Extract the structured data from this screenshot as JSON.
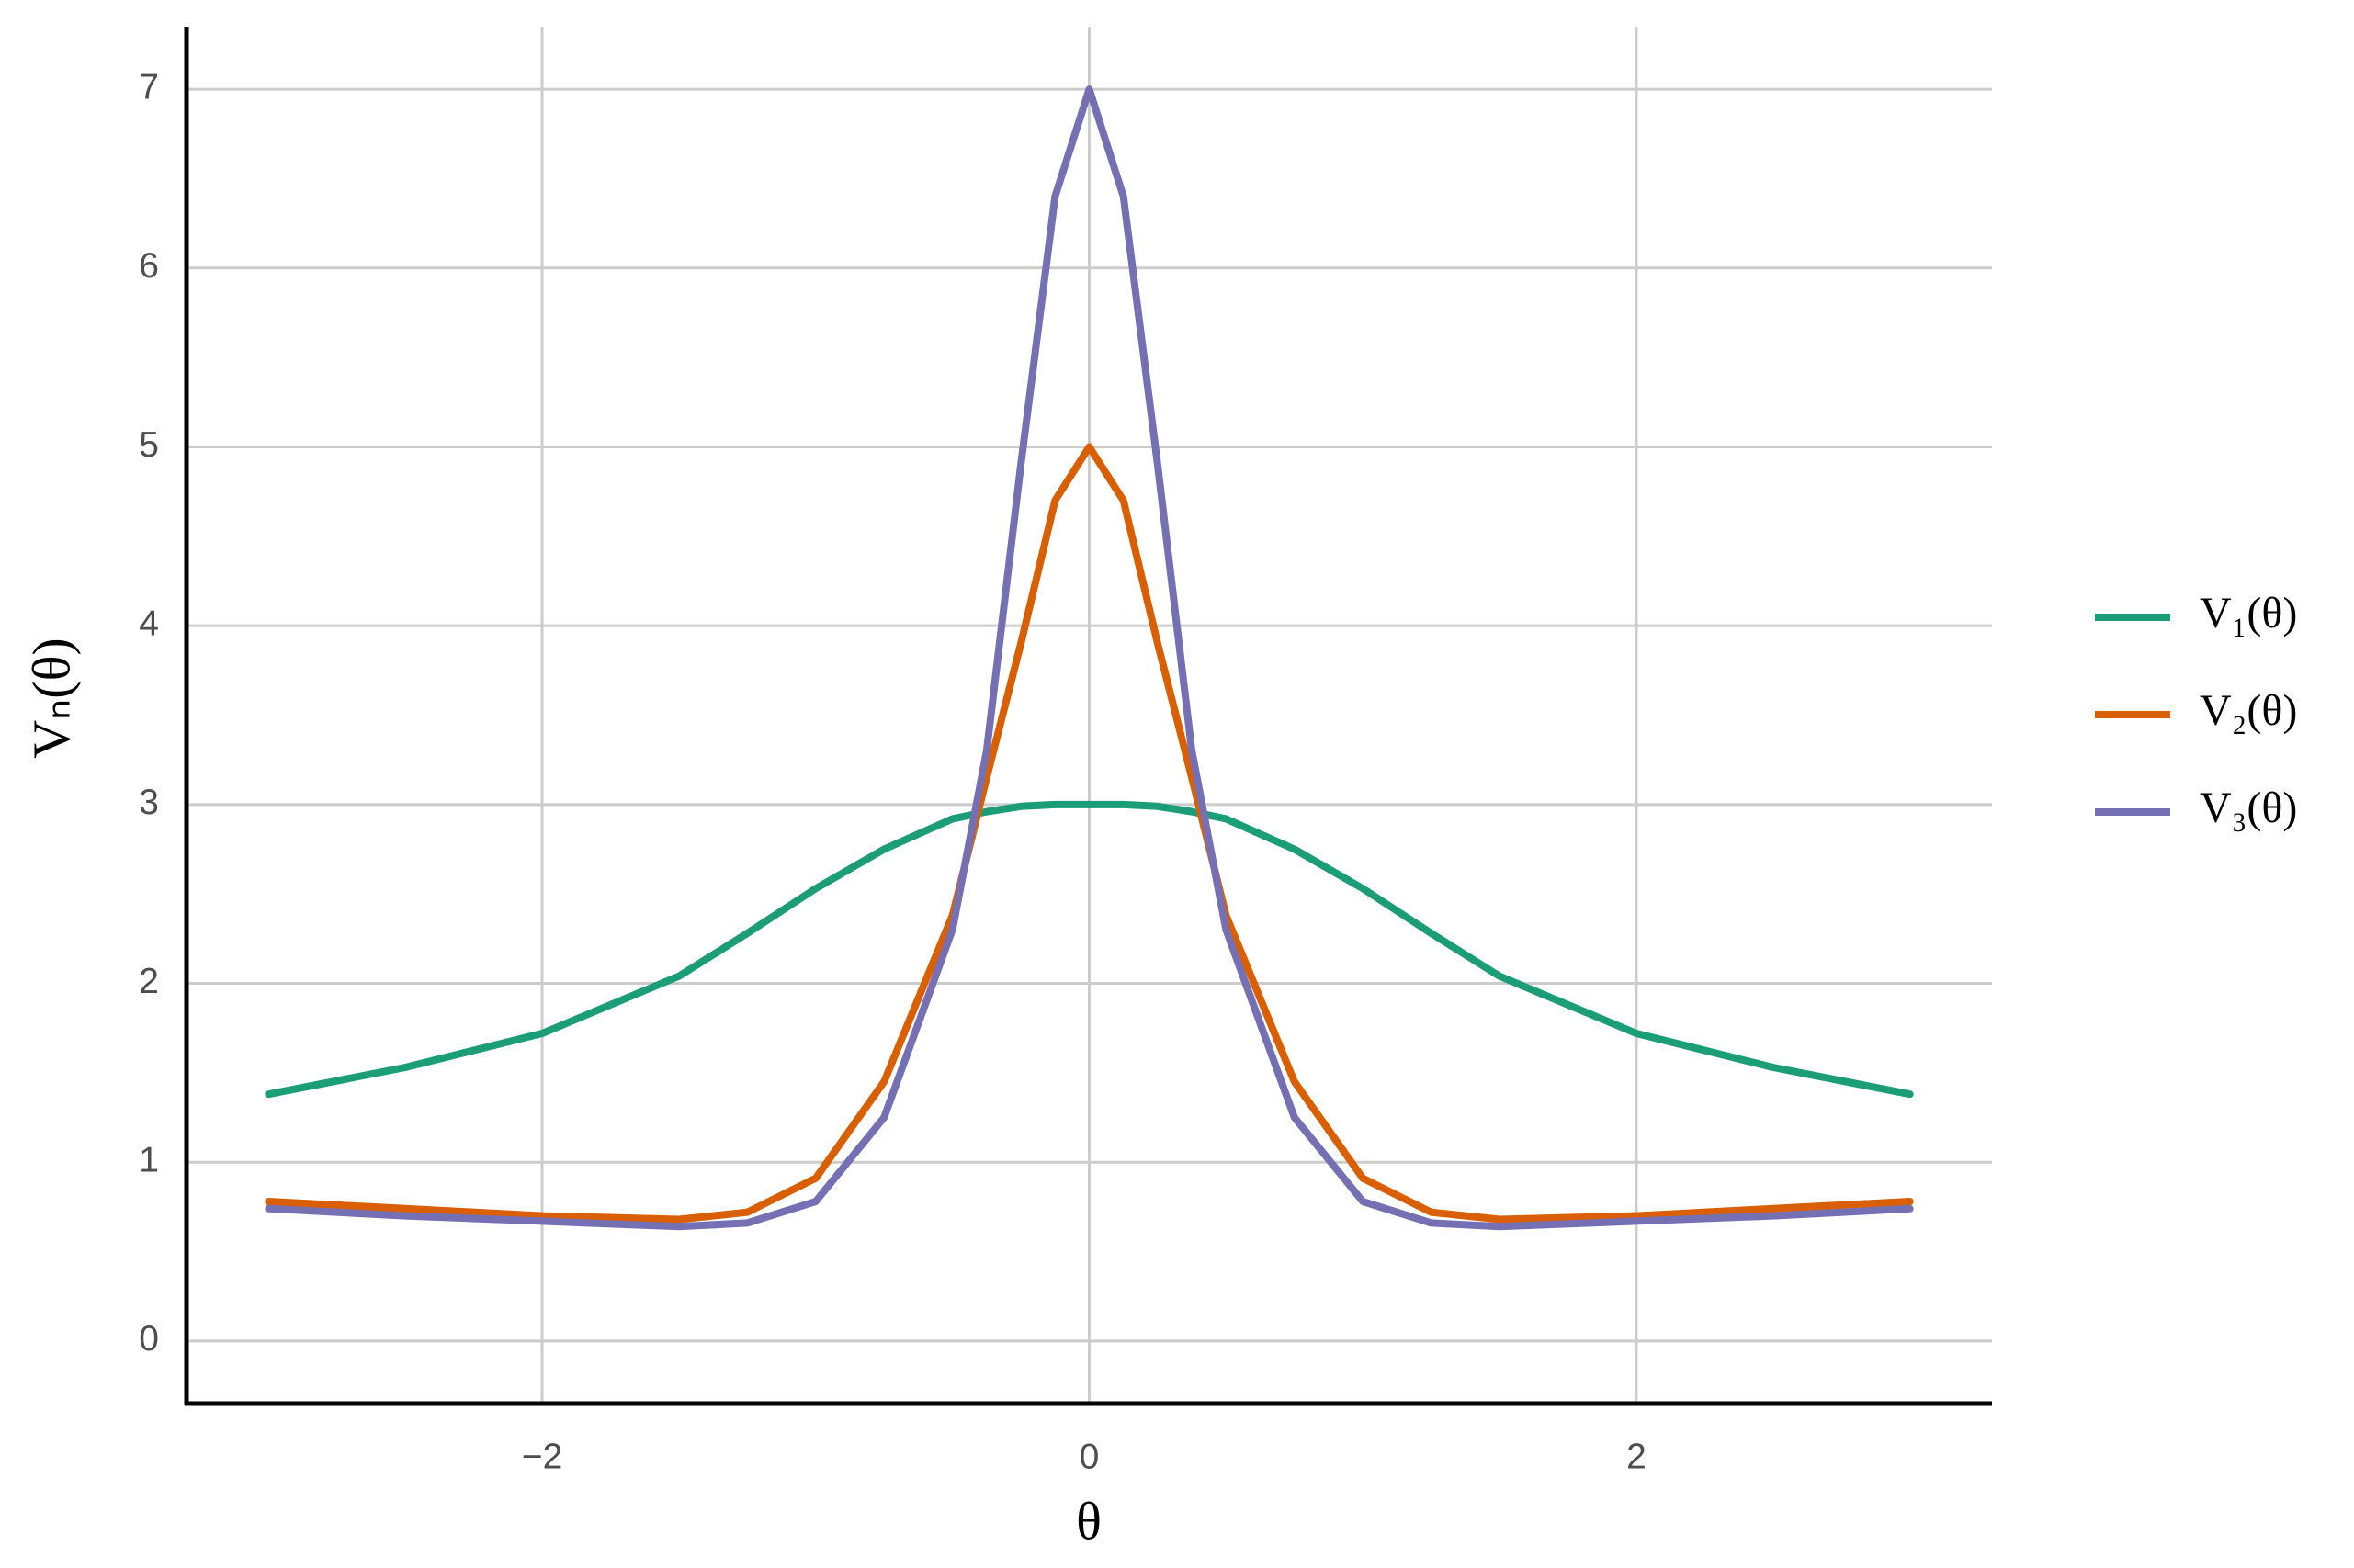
{
  "chart_data": {
    "type": "line",
    "x_label": "θ",
    "y_label": "Vₙ(θ)",
    "x": [
      -3,
      -2.5,
      -2,
      -1.5,
      -1.25,
      -1,
      -0.75,
      -0.5,
      -0.375,
      -0.25,
      -0.125,
      0,
      0.125,
      0.25,
      0.375,
      0.5,
      0.75,
      1,
      1.25,
      1.5,
      2,
      2.5,
      3
    ],
    "series": [
      {
        "name": "V₁(θ)",
        "color": "#1b9e77",
        "values": [
          1.38,
          1.53,
          1.72,
          2.04,
          2.28,
          2.53,
          2.75,
          2.92,
          2.96,
          2.99,
          3.0,
          3.0,
          3.0,
          2.99,
          2.96,
          2.92,
          2.75,
          2.53,
          2.28,
          2.04,
          1.72,
          1.53,
          1.38
        ]
      },
      {
        "name": "V₂(θ)",
        "color": "#d95f02",
        "values": [
          0.78,
          0.74,
          0.7,
          0.68,
          0.72,
          0.91,
          1.45,
          2.38,
          3.15,
          3.9,
          4.7,
          5.0,
          4.7,
          3.9,
          3.15,
          2.38,
          1.45,
          0.91,
          0.72,
          0.68,
          0.7,
          0.74,
          0.78
        ]
      },
      {
        "name": "V₃(θ)",
        "color": "#7570b3",
        "values": [
          0.74,
          0.7,
          0.67,
          0.64,
          0.66,
          0.78,
          1.25,
          2.3,
          3.3,
          4.9,
          6.4,
          7.0,
          6.4,
          4.9,
          3.3,
          2.3,
          1.25,
          0.78,
          0.66,
          0.64,
          0.67,
          0.7,
          0.74
        ]
      }
    ],
    "xlim": [
      -3.3,
      3.3
    ],
    "ylim": [
      -0.35,
      7.35
    ],
    "xticks": [
      {
        "value": -2,
        "label": "−2"
      },
      0,
      2
    ],
    "yticks": [
      0,
      1,
      2,
      3,
      4,
      5,
      6,
      7
    ],
    "grid": true,
    "legend": "right"
  }
}
